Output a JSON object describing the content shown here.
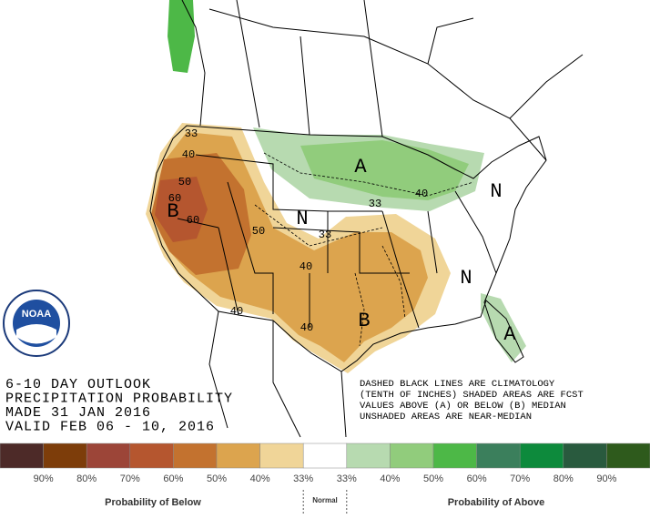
{
  "header": {
    "lines": [
      "6-10 DAY OUTLOOK",
      "PRECIPITATION PROBABILITY",
      "MADE  31 JAN 2016",
      "VALID  FEB 06 - 10, 2016"
    ],
    "notes": [
      "DASHED BLACK LINES ARE CLIMATOLOGY",
      "(TENTH OF INCHES) SHADED AREAS ARE FCST",
      "VALUES ABOVE (A) OR BELOW (B) MEDIAN",
      "UNSHADED AREAS ARE NEAR-MEDIAN"
    ]
  },
  "logo": {
    "text": "NOAA"
  },
  "map": {
    "labels": [
      "33",
      "40",
      "50",
      "60",
      "B",
      "60",
      "50",
      "N",
      "33",
      "40",
      "A",
      "33",
      "40",
      "N",
      "N",
      "B",
      "40",
      "40",
      "A"
    ]
  },
  "legend": {
    "colors": [
      "#4d2a28",
      "#7d3d0a",
      "#9c4538",
      "#b5562f",
      "#c3722f",
      "#dca44e",
      "#f0d598",
      "#ffffff",
      "#b7dab0",
      "#91cc7c",
      "#4db847",
      "#3b7f5c",
      "#0d8a3c",
      "#295a3e",
      "#2e5a1c"
    ],
    "labels": [
      "90%",
      "80%",
      "70%",
      "60%",
      "50%",
      "40%",
      "33%",
      "33%",
      "40%",
      "50%",
      "60%",
      "70%",
      "80%",
      "90%"
    ],
    "below": "Probability of Below",
    "normal": "Normal",
    "above": "Probability of Above"
  }
}
